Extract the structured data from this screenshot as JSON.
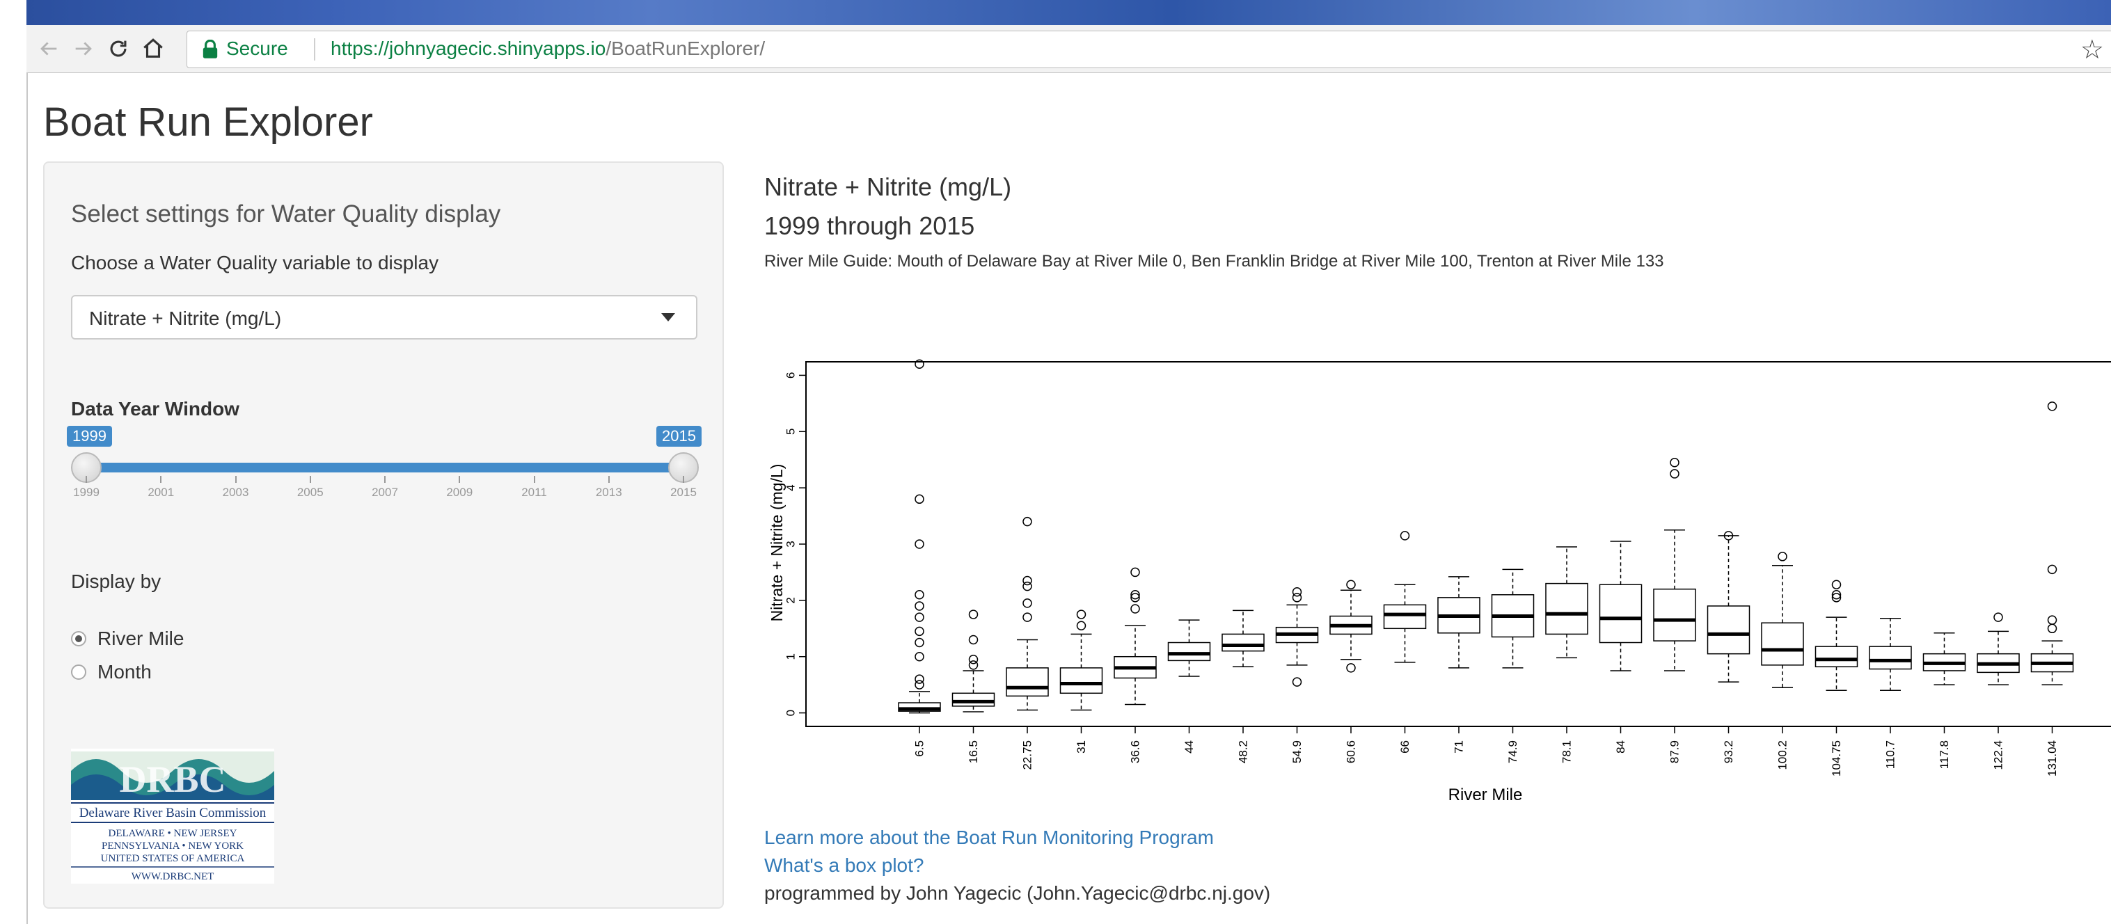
{
  "browser": {
    "secure_label": "Secure",
    "url_base": "https://johnyagecic.shinyapps.io",
    "url_path": "/BoatRunExplorer/"
  },
  "app": {
    "title": "Boat Run Explorer"
  },
  "sidebar": {
    "heading": "Select settings for Water Quality display",
    "variable_label": "Choose a Water Quality variable to display",
    "variable_selected": "Nitrate + Nitrite (mg/L)",
    "year_window_label": "Data Year Window",
    "year_start": "1999",
    "year_end": "2015",
    "year_ticks": [
      "1999",
      "2001",
      "2003",
      "2005",
      "2007",
      "2009",
      "2011",
      "2013",
      "2015"
    ],
    "display_by_label": "Display by",
    "display_options": [
      "River Mile",
      "Month"
    ],
    "display_selected": "River Mile",
    "logo": {
      "name": "Delaware River Basin Commission",
      "states_line1": "DELAWARE  •  NEW JERSEY",
      "states_line2": "PENNSYLVANIA  •  NEW YORK",
      "states_line3": "UNITED STATES OF AMERICA",
      "website": "WWW.DRBC.NET"
    }
  },
  "main": {
    "title": "Nitrate + Nitrite (mg/L)",
    "years": "1999 through 2015",
    "guide": "River Mile Guide: Mouth of Delaware Bay at River Mile 0, Ben Franklin Bridge at River Mile 100, Trenton at River Mile 133",
    "link_program": "Learn more about the Boat Run Monitoring Program",
    "link_boxplot": "What's a box plot?",
    "credit": "programmed by John Yagecic (John.Yagecic@drbc.nj.gov)"
  },
  "chart_data": {
    "type": "boxplot",
    "xlabel": "River Mile",
    "ylabel": "Nitrate + Nitrite (mg/L)",
    "ylim": [
      0,
      6
    ],
    "yticks": [
      0,
      1,
      2,
      3,
      4,
      5,
      6
    ],
    "categories": [
      "6.5",
      "16.5",
      "22.75",
      "31",
      "36.6",
      "44",
      "48.2",
      "54.9",
      "60.6",
      "66",
      "71",
      "74.9",
      "78.1",
      "84",
      "87.9",
      "93.2",
      "100.2",
      "104.75",
      "110.7",
      "117.8",
      "122.4",
      "131.04"
    ],
    "boxes": [
      {
        "min": 0.0,
        "q1": 0.03,
        "median": 0.07,
        "q3": 0.18,
        "max": 0.38,
        "outliers": [
          0.5,
          0.6,
          1.0,
          1.25,
          1.45,
          1.7,
          1.9,
          2.1,
          3.0,
          3.8,
          6.2
        ]
      },
      {
        "min": 0.02,
        "q1": 0.12,
        "median": 0.2,
        "q3": 0.35,
        "max": 0.75,
        "outliers": [
          0.85,
          0.95,
          1.3,
          1.75
        ]
      },
      {
        "min": 0.05,
        "q1": 0.3,
        "median": 0.45,
        "q3": 0.8,
        "max": 1.3,
        "outliers": [
          1.7,
          1.95,
          2.25,
          2.35,
          3.4
        ]
      },
      {
        "min": 0.05,
        "q1": 0.35,
        "median": 0.52,
        "q3": 0.8,
        "max": 1.4,
        "outliers": [
          1.55,
          1.75
        ]
      },
      {
        "min": 0.15,
        "q1": 0.62,
        "median": 0.8,
        "q3": 1.0,
        "max": 1.55,
        "outliers": [
          1.85,
          2.05,
          2.1,
          2.5
        ]
      },
      {
        "min": 0.65,
        "q1": 0.93,
        "median": 1.05,
        "q3": 1.25,
        "max": 1.65,
        "outliers": []
      },
      {
        "min": 0.82,
        "q1": 1.1,
        "median": 1.2,
        "q3": 1.4,
        "max": 1.82,
        "outliers": []
      },
      {
        "min": 0.85,
        "q1": 1.25,
        "median": 1.4,
        "q3": 1.52,
        "max": 1.92,
        "outliers": [
          0.55,
          2.05,
          2.15
        ]
      },
      {
        "min": 0.95,
        "q1": 1.4,
        "median": 1.55,
        "q3": 1.72,
        "max": 2.18,
        "outliers": [
          0.8,
          2.28
        ]
      },
      {
        "min": 0.9,
        "q1": 1.5,
        "median": 1.75,
        "q3": 1.92,
        "max": 2.28,
        "outliers": [
          3.15
        ]
      },
      {
        "min": 0.8,
        "q1": 1.42,
        "median": 1.72,
        "q3": 2.05,
        "max": 2.42,
        "outliers": []
      },
      {
        "min": 0.8,
        "q1": 1.35,
        "median": 1.72,
        "q3": 2.1,
        "max": 2.55,
        "outliers": []
      },
      {
        "min": 0.98,
        "q1": 1.4,
        "median": 1.76,
        "q3": 2.3,
        "max": 2.95,
        "outliers": []
      },
      {
        "min": 0.75,
        "q1": 1.25,
        "median": 1.68,
        "q3": 2.28,
        "max": 3.05,
        "outliers": []
      },
      {
        "min": 0.75,
        "q1": 1.28,
        "median": 1.65,
        "q3": 2.2,
        "max": 3.25,
        "outliers": [
          4.25,
          4.45
        ]
      },
      {
        "min": 0.55,
        "q1": 1.05,
        "median": 1.4,
        "q3": 1.9,
        "max": 3.15,
        "outliers": [
          3.15
        ]
      },
      {
        "min": 0.45,
        "q1": 0.85,
        "median": 1.12,
        "q3": 1.6,
        "max": 2.62,
        "outliers": [
          2.78
        ]
      },
      {
        "min": 0.4,
        "q1": 0.82,
        "median": 0.95,
        "q3": 1.18,
        "max": 1.7,
        "outliers": [
          2.05,
          2.1,
          2.28
        ]
      },
      {
        "min": 0.4,
        "q1": 0.78,
        "median": 0.93,
        "q3": 1.18,
        "max": 1.68,
        "outliers": []
      },
      {
        "min": 0.5,
        "q1": 0.75,
        "median": 0.88,
        "q3": 1.05,
        "max": 1.42,
        "outliers": []
      },
      {
        "min": 0.5,
        "q1": 0.72,
        "median": 0.87,
        "q3": 1.05,
        "max": 1.45,
        "outliers": [
          1.7
        ]
      },
      {
        "min": 0.5,
        "q1": 0.73,
        "median": 0.88,
        "q3": 1.05,
        "max": 1.28,
        "outliers": [
          1.5,
          1.65,
          2.55,
          5.45
        ]
      }
    ]
  }
}
